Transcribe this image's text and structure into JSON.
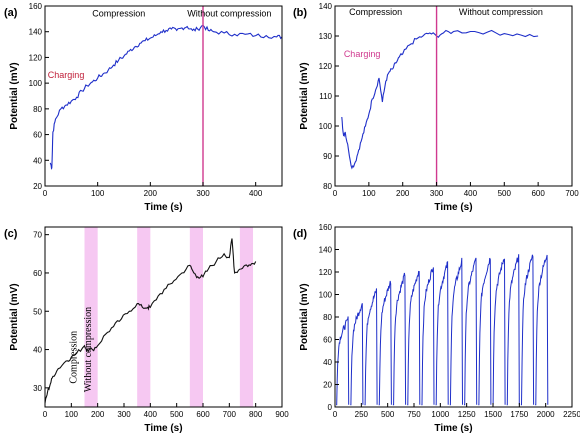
{
  "chart_data": [
    {
      "type": "line",
      "panel_label": "(a)",
      "xlabel": "Time (s)",
      "ylabel": "Potential (mV)",
      "xlim": [
        0,
        450
      ],
      "ylim": [
        20,
        160
      ],
      "xticks": [
        0,
        100,
        200,
        300,
        400
      ],
      "yticks": [
        20,
        40,
        60,
        80,
        100,
        120,
        140,
        160
      ],
      "line_color": "#1f2fc9",
      "annotations": [
        {
          "text": "Charging",
          "x": 40,
          "y": 104,
          "color": "#c0203a"
        },
        {
          "text": "Compression",
          "x": 140,
          "y": 152,
          "color": "#000000"
        },
        {
          "text": "Without compression",
          "x": 350,
          "y": 152,
          "color": "#000000"
        }
      ],
      "vlines": [
        {
          "x": 300,
          "color": "#d0398f"
        }
      ],
      "series": [
        {
          "x": [
            10,
            13,
            15,
            20,
            30,
            40,
            50,
            60,
            70,
            80,
            90,
            100,
            110,
            120,
            130,
            140,
            150,
            160,
            170,
            180,
            190,
            200,
            210,
            220,
            230,
            240,
            250,
            260,
            270,
            280,
            290,
            300,
            310,
            320,
            340,
            360,
            380,
            400,
            420,
            440,
            450
          ],
          "y": [
            38,
            34,
            62,
            72,
            80,
            83,
            86,
            89,
            94,
            98,
            101,
            104,
            107,
            110,
            114,
            118,
            121,
            125,
            128,
            131,
            133,
            135,
            137,
            140,
            141,
            142,
            141,
            143,
            144,
            141,
            142,
            145,
            141,
            140,
            139,
            138,
            138,
            137,
            137,
            136,
            136
          ]
        }
      ]
    },
    {
      "type": "line",
      "panel_label": "(b)",
      "xlabel": "Time (s)",
      "ylabel": "Potential (mV)",
      "xlim": [
        0,
        700
      ],
      "ylim": [
        80,
        140
      ],
      "xticks": [
        0,
        100,
        200,
        300,
        400,
        500,
        600,
        700
      ],
      "yticks": [
        80,
        90,
        100,
        110,
        120,
        130,
        140
      ],
      "line_color": "#1f2fc9",
      "annotations": [
        {
          "text": "Charging",
          "x": 80,
          "y": 123,
          "color": "#d0398f"
        },
        {
          "text": "Compression",
          "x": 120,
          "y": 137,
          "color": "#000000"
        },
        {
          "text": "Without compression",
          "x": 490,
          "y": 137,
          "color": "#000000"
        }
      ],
      "vlines": [
        {
          "x": 300,
          "color": "#d0398f"
        }
      ],
      "series": [
        {
          "x": [
            20,
            25,
            30,
            40,
            50,
            60,
            70,
            80,
            90,
            100,
            110,
            120,
            130,
            140,
            150,
            160,
            170,
            180,
            190,
            200,
            220,
            240,
            260,
            280,
            300,
            320,
            350,
            400,
            450,
            500,
            550,
            600
          ],
          "y": [
            103,
            97,
            98,
            92,
            86,
            88,
            92,
            96,
            100,
            104,
            109,
            112,
            116,
            108,
            115,
            118,
            119,
            121,
            123,
            124,
            127,
            129,
            130,
            131,
            130,
            131,
            131.5,
            131.5,
            131.3,
            130.8,
            130.3,
            130
          ]
        }
      ]
    },
    {
      "type": "line",
      "panel_label": "(c)",
      "xlabel": "Time (s)",
      "ylabel": "Potential (mV)",
      "xlim": [
        0,
        900
      ],
      "ylim": [
        25,
        72
      ],
      "xticks": [
        0,
        100,
        200,
        300,
        400,
        500,
        600,
        700,
        800,
        900
      ],
      "yticks": [
        30,
        40,
        50,
        60,
        70
      ],
      "line_color": "#111111",
      "shaded_regions": [
        [
          150,
          200
        ],
        [
          350,
          400
        ],
        [
          550,
          600
        ],
        [
          740,
          790
        ]
      ],
      "shade_color": "#f6c8f2",
      "annotations": [
        {
          "text": "Compression",
          "x": 120,
          "y": 38,
          "rotation": -90
        },
        {
          "text": "Without compression",
          "x": 175,
          "y": 40,
          "rotation": -90
        }
      ],
      "series": [
        {
          "x": [
            0,
            10,
            20,
            30,
            50,
            80,
            100,
            120,
            150,
            160,
            180,
            200,
            230,
            260,
            290,
            320,
            350,
            370,
            390,
            400,
            430,
            460,
            490,
            520,
            550,
            565,
            580,
            600,
            620,
            650,
            680,
            700,
            710,
            720,
            740,
            760,
            780,
            800
          ],
          "y": [
            26,
            29,
            31,
            33,
            35,
            37,
            38,
            39,
            41,
            40,
            40,
            41,
            44,
            46,
            48,
            50,
            52,
            51,
            51,
            51,
            54,
            56,
            58,
            60,
            62,
            60,
            59,
            59,
            61,
            63,
            65,
            64,
            69,
            60,
            61,
            62,
            62,
            63
          ]
        }
      ]
    },
    {
      "type": "line",
      "panel_label": "(d)",
      "xlabel": "Time (s)",
      "ylabel": "Potential (mV)",
      "xlim": [
        0,
        2250
      ],
      "ylim": [
        0,
        160
      ],
      "xticks": [
        0,
        250,
        500,
        750,
        1000,
        1250,
        1500,
        1750,
        2000,
        2250
      ],
      "yticks": [
        0,
        20,
        40,
        60,
        80,
        100,
        120,
        140,
        160
      ],
      "line_color": "#1f2fc9",
      "cycles": [
        {
          "start": 10,
          "end": 130,
          "peak": 78
        },
        {
          "start": 145,
          "end": 265,
          "peak": 92
        },
        {
          "start": 280,
          "end": 400,
          "peak": 104
        },
        {
          "start": 415,
          "end": 535,
          "peak": 112
        },
        {
          "start": 550,
          "end": 670,
          "peak": 118
        },
        {
          "start": 685,
          "end": 805,
          "peak": 122
        },
        {
          "start": 820,
          "end": 940,
          "peak": 126
        },
        {
          "start": 955,
          "end": 1075,
          "peak": 128
        },
        {
          "start": 1090,
          "end": 1210,
          "peak": 130
        },
        {
          "start": 1225,
          "end": 1345,
          "peak": 132
        },
        {
          "start": 1360,
          "end": 1480,
          "peak": 133
        },
        {
          "start": 1495,
          "end": 1615,
          "peak": 134
        },
        {
          "start": 1630,
          "end": 1750,
          "peak": 135
        },
        {
          "start": 1765,
          "end": 1885,
          "peak": 136
        },
        {
          "start": 1900,
          "end": 2020,
          "peak": 137
        }
      ]
    }
  ]
}
